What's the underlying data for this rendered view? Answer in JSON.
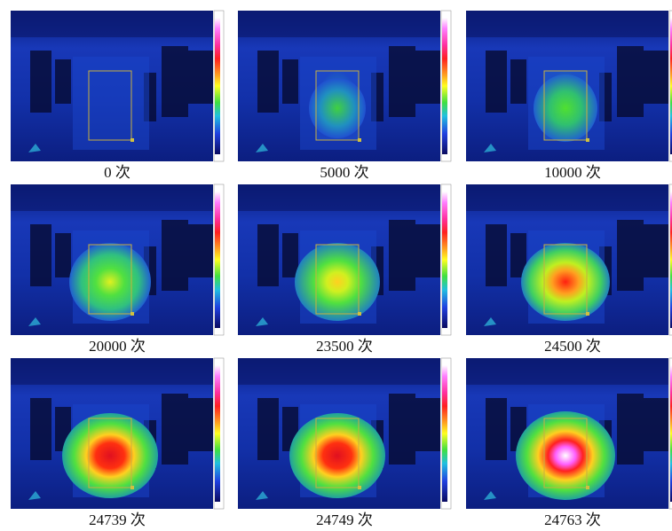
{
  "figure": {
    "panels": [
      {
        "caption": "0 次"
      },
      {
        "caption": "5000 次"
      },
      {
        "caption": "10000 次"
      },
      {
        "caption": "20000 次"
      },
      {
        "caption": "23500 次"
      },
      {
        "caption": "24500 次"
      },
      {
        "caption": "24739 次"
      },
      {
        "caption": "24749 次"
      },
      {
        "caption": "24763 次"
      }
    ]
  }
}
